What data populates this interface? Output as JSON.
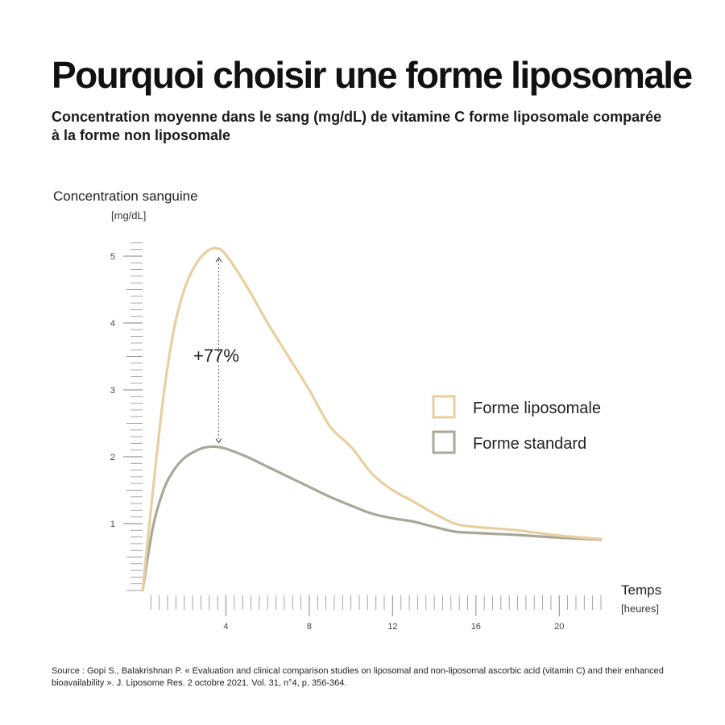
{
  "title": "Pourquoi choisir une forme liposomale",
  "subtitle": "Concentration moyenne dans le sang (mg/dL) de vitamine C forme liposomale comparée à la forme non liposomale",
  "source": "Source : Gopi S., Balakrishnan P. « Evaluation and clinical comparison studies on liposomal and non-liposomal ascorbic acid (vitamin C) and their enhanced bioavailability ». J. Liposome Res. 2 octobre 2021. Vol. 31, n°4, p. 356-364.",
  "colors": {
    "liposomal": "#e8cfa0",
    "standard": "#a9a797",
    "axis": "#9a9a9a",
    "text": "#111111"
  },
  "chart_data": {
    "type": "line",
    "ylabel": "Concentration sanguine",
    "yunit": "[mg/dL]",
    "xlabel": "Temps",
    "xunit": "[heures]",
    "xlim": [
      0,
      22
    ],
    "ylim": [
      0,
      5
    ],
    "xticks": [
      4,
      8,
      12,
      16,
      20
    ],
    "yticks": [
      1,
      2,
      3,
      4,
      5
    ],
    "grid": false,
    "legend_position": "right",
    "annotation": {
      "text": "+77%",
      "x": 3.5
    },
    "series": [
      {
        "name": "Forme liposomale",
        "color": "#e8cfa0",
        "x": [
          0,
          0.5,
          1,
          1.5,
          2,
          2.5,
          3,
          3.5,
          4,
          5,
          6,
          7,
          8,
          9,
          10,
          11,
          12,
          13,
          14,
          15,
          16,
          18,
          20,
          22
        ],
        "y": [
          0,
          1.5,
          2.9,
          3.9,
          4.5,
          4.85,
          5.05,
          5.12,
          5.02,
          4.55,
          4.0,
          3.5,
          3.0,
          2.45,
          2.15,
          1.75,
          1.5,
          1.33,
          1.15,
          1.0,
          0.95,
          0.9,
          0.82,
          0.77
        ]
      },
      {
        "name": "Forme standard",
        "color": "#a9a797",
        "x": [
          0,
          0.5,
          1,
          1.5,
          2,
          2.5,
          3,
          3.5,
          4,
          5,
          6,
          7,
          8,
          9,
          10,
          11,
          12,
          13,
          14,
          15,
          16,
          18,
          20,
          22
        ],
        "y": [
          0,
          0.95,
          1.5,
          1.8,
          1.98,
          2.08,
          2.14,
          2.15,
          2.12,
          2.0,
          1.85,
          1.7,
          1.55,
          1.4,
          1.27,
          1.15,
          1.08,
          1.03,
          0.95,
          0.88,
          0.86,
          0.83,
          0.79,
          0.76
        ]
      }
    ]
  }
}
